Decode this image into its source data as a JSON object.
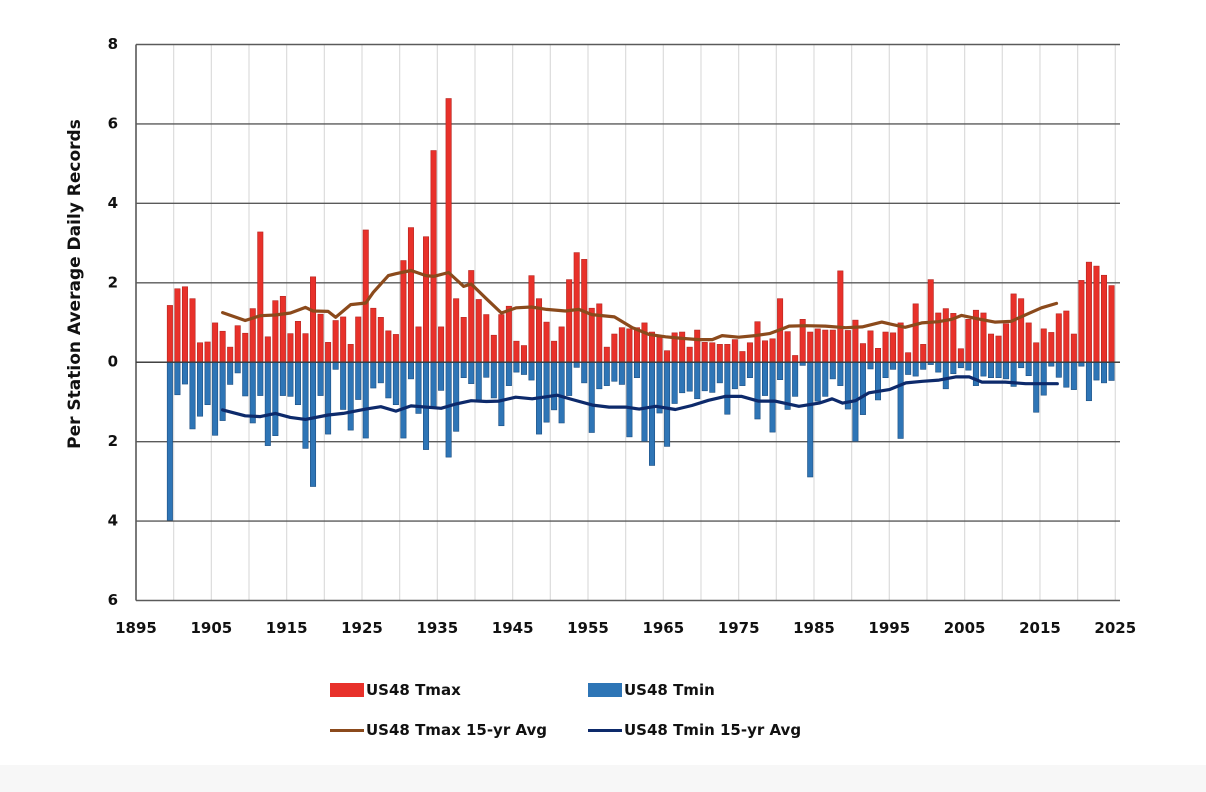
{
  "chart_data": {
    "type": "bar",
    "title": "",
    "xlabel": "",
    "ylabel": "Per Station Average Daily Records",
    "ylim": [
      -6,
      8
    ],
    "xlim": [
      1895,
      2025
    ],
    "y_ticks": [
      8,
      6,
      4,
      2,
      0,
      -2,
      -4,
      -6
    ],
    "y_tick_labels": [
      "8",
      "6",
      "4",
      "2",
      "0",
      "2",
      "4",
      "6"
    ],
    "x_ticks": [
      1895,
      1905,
      1915,
      1925,
      1935,
      1945,
      1955,
      1965,
      1975,
      1985,
      1995,
      2005,
      2015,
      2025
    ],
    "x_tick_labels": [
      "1895",
      "1905",
      "1915",
      "1925",
      "1935",
      "1945",
      "1955",
      "1965",
      "1975",
      "1985",
      "1995",
      "2005",
      "2015",
      "2025"
    ],
    "grid": true,
    "legend_position": "bottom",
    "colors": {
      "tmax": "#e8312a",
      "tmin": "#2e75b6",
      "tmax_avg": "#8b4a1c",
      "tmin_avg": "#0d2a6b"
    },
    "years_start": 1899,
    "series": [
      {
        "name": "US48 Tmax",
        "kind": "bar",
        "note": "positive values, years 1899-2024",
        "values": [
          1.43,
          1.85,
          1.9,
          1.6,
          0.49,
          0.51,
          0.99,
          0.78,
          0.38,
          0.92,
          0.73,
          1.35,
          3.28,
          0.64,
          1.55,
          1.66,
          0.72,
          1.03,
          0.72,
          2.15,
          1.21,
          0.5,
          1.05,
          1.14,
          0.45,
          1.14,
          3.33,
          1.36,
          1.13,
          0.79,
          0.7,
          2.56,
          3.39,
          0.89,
          3.16,
          5.33,
          0.89,
          6.64,
          1.6,
          1.13,
          2.31,
          1.58,
          1.2,
          0.68,
          1.2,
          1.41,
          0.53,
          0.42,
          2.18,
          1.6,
          1.01,
          0.53,
          0.89,
          2.08,
          2.76,
          2.59,
          1.36,
          1.47,
          0.38,
          0.71,
          0.87,
          0.84,
          0.87,
          0.99,
          0.76,
          0.63,
          0.29,
          0.74,
          0.76,
          0.38,
          0.81,
          0.5,
          0.49,
          0.45,
          0.45,
          0.57,
          0.27,
          0.49,
          1.02,
          0.54,
          0.59,
          1.6,
          0.77,
          0.17,
          1.08,
          0.76,
          0.84,
          0.81,
          0.81,
          2.3,
          0.8,
          1.06,
          0.47,
          0.79,
          0.35,
          0.76,
          0.74,
          0.99,
          0.24,
          1.47,
          0.45,
          2.08,
          1.24,
          1.35,
          1.23,
          0.34,
          1.08,
          1.31,
          1.24,
          0.71,
          0.66,
          0.97,
          1.72,
          1.6,
          0.99,
          0.49,
          0.84,
          0.75,
          1.22,
          1.29,
          0.71,
          2.06,
          2.52,
          2.42,
          2.19,
          1.93
        ]
      },
      {
        "name": "US48 Tmin",
        "kind": "bar",
        "note": "plotted downward (negative), years 1899-2024",
        "values": [
          -3.98,
          -0.82,
          -0.55,
          -1.68,
          -1.36,
          -1.07,
          -1.84,
          -1.47,
          -0.56,
          -0.27,
          -0.85,
          -1.53,
          -0.84,
          -2.1,
          -1.85,
          -0.84,
          -0.86,
          -1.07,
          -2.17,
          -3.13,
          -0.84,
          -1.81,
          -0.18,
          -1.19,
          -1.71,
          -0.94,
          -1.91,
          -0.65,
          -0.52,
          -0.9,
          -1.07,
          -1.91,
          -0.42,
          -1.29,
          -2.2,
          -1.15,
          -0.71,
          -2.39,
          -1.74,
          -0.39,
          -0.54,
          -1.0,
          -0.38,
          -0.9,
          -1.6,
          -0.59,
          -0.25,
          -0.31,
          -0.45,
          -1.81,
          -1.51,
          -1.2,
          -1.53,
          -0.84,
          -0.13,
          -0.52,
          -1.77,
          -0.67,
          -0.59,
          -0.48,
          -0.56,
          -1.88,
          -0.39,
          -1.99,
          -2.6,
          -1.28,
          -2.12,
          -1.04,
          -0.77,
          -0.73,
          -0.92,
          -0.72,
          -0.76,
          -0.52,
          -1.31,
          -0.67,
          -0.59,
          -0.39,
          -1.43,
          -0.84,
          -1.76,
          -0.44,
          -1.19,
          -0.86,
          -0.08,
          -2.89,
          -0.98,
          -0.86,
          -0.42,
          -0.59,
          -1.18,
          -1.99,
          -1.32,
          -0.17,
          -0.95,
          -0.39,
          -0.18,
          -1.92,
          -0.31,
          -0.35,
          -0.18,
          -0.06,
          -0.25,
          -0.67,
          -0.29,
          -0.14,
          -0.2,
          -0.59,
          -0.35,
          -0.39,
          -0.39,
          -0.42,
          -0.61,
          -0.14,
          -0.34,
          -1.26,
          -0.83,
          -0.1,
          -0.38,
          -0.63,
          -0.69,
          -0.1,
          -0.97,
          -0.45,
          -0.52,
          -0.46
        ]
      },
      {
        "name": "US48 Tmax 15-yr Avg",
        "kind": "line",
        "x": [
          1906,
          1909,
          1911,
          1913,
          1915,
          1917,
          1918,
          1920,
          1921,
          1923,
          1925,
          1926,
          1928,
          1929,
          1931,
          1933,
          1934,
          1936,
          1938,
          1939,
          1941,
          1943,
          1945,
          1947,
          1949,
          1951.5,
          1953.3,
          1955,
          1958,
          1960.4,
          1962.6,
          1964.8,
          1967,
          1969.2,
          1971,
          1972.3,
          1974.5,
          1976.7,
          1978.6,
          1980.3,
          1981.2,
          1983.4,
          1986,
          1988.7,
          1990.9,
          1993.5,
          1996.6,
          1998.8,
          2001,
          2002.8,
          2004.1,
          2006.3,
          2008.5,
          2010.7,
          2012.9,
          2014.7,
          2016.7
        ],
        "values": [
          1.25,
          1.05,
          1.17,
          1.19,
          1.24,
          1.38,
          1.29,
          1.28,
          1.13,
          1.45,
          1.49,
          1.76,
          2.18,
          2.23,
          2.31,
          2.18,
          2.16,
          2.26,
          1.91,
          1.97,
          1.6,
          1.24,
          1.37,
          1.39,
          1.33,
          1.29,
          1.33,
          1.2,
          1.14,
          0.87,
          0.7,
          0.64,
          0.6,
          0.57,
          0.57,
          0.67,
          0.63,
          0.67,
          0.72,
          0.84,
          0.91,
          0.92,
          0.91,
          0.87,
          0.89,
          1.01,
          0.88,
          0.99,
          1.02,
          1.08,
          1.18,
          1.09,
          1.01,
          1.03,
          1.22,
          1.37,
          1.48
        ]
      },
      {
        "name": "US48 Tmin 15-yr Avg",
        "kind": "line",
        "x": [
          1906,
          1909,
          1911,
          1913,
          1915,
          1917,
          1920,
          1922,
          1925,
          1927,
          1929,
          1931,
          1935,
          1937,
          1939,
          1941,
          1942.7,
          1944.9,
          1947.1,
          1950.4,
          1952.4,
          1955.1,
          1957.3,
          1959.5,
          1961.3,
          1963.5,
          1966.1,
          1968.3,
          1970.5,
          1972.7,
          1974.9,
          1977.1,
          1979.3,
          1982.5,
          1985.2,
          1986.9,
          1988.3,
          1990,
          1991.8,
          1994.5,
          1996.7,
          1998.9,
          2001.1,
          2003.3,
          2005.1,
          2006.8,
          2009.9,
          2012.6,
          2016.8
        ],
        "values": [
          -1.2,
          -1.35,
          -1.37,
          -1.29,
          -1.39,
          -1.44,
          -1.33,
          -1.29,
          -1.18,
          -1.12,
          -1.23,
          -1.1,
          -1.16,
          -1.05,
          -0.97,
          -0.99,
          -0.98,
          -0.88,
          -0.92,
          -0.83,
          -0.94,
          -1.08,
          -1.13,
          -1.13,
          -1.18,
          -1.11,
          -1.19,
          -1.09,
          -0.96,
          -0.86,
          -0.86,
          -0.98,
          -0.98,
          -1.11,
          -1.03,
          -0.92,
          -1.03,
          -0.97,
          -0.77,
          -0.69,
          -0.52,
          -0.48,
          -0.45,
          -0.37,
          -0.37,
          -0.5,
          -0.5,
          -0.54,
          -0.54
        ]
      }
    ],
    "legend": [
      {
        "label": "US48 Tmax",
        "kind": "box",
        "color_key": "tmax"
      },
      {
        "label": "US48 Tmin",
        "kind": "box",
        "color_key": "tmin"
      },
      {
        "label": "US48 Tmax 15-yr Avg",
        "kind": "line",
        "color_key": "tmax_avg"
      },
      {
        "label": "US48 Tmin 15-yr Avg",
        "kind": "line",
        "color_key": "tmin_avg"
      }
    ]
  }
}
